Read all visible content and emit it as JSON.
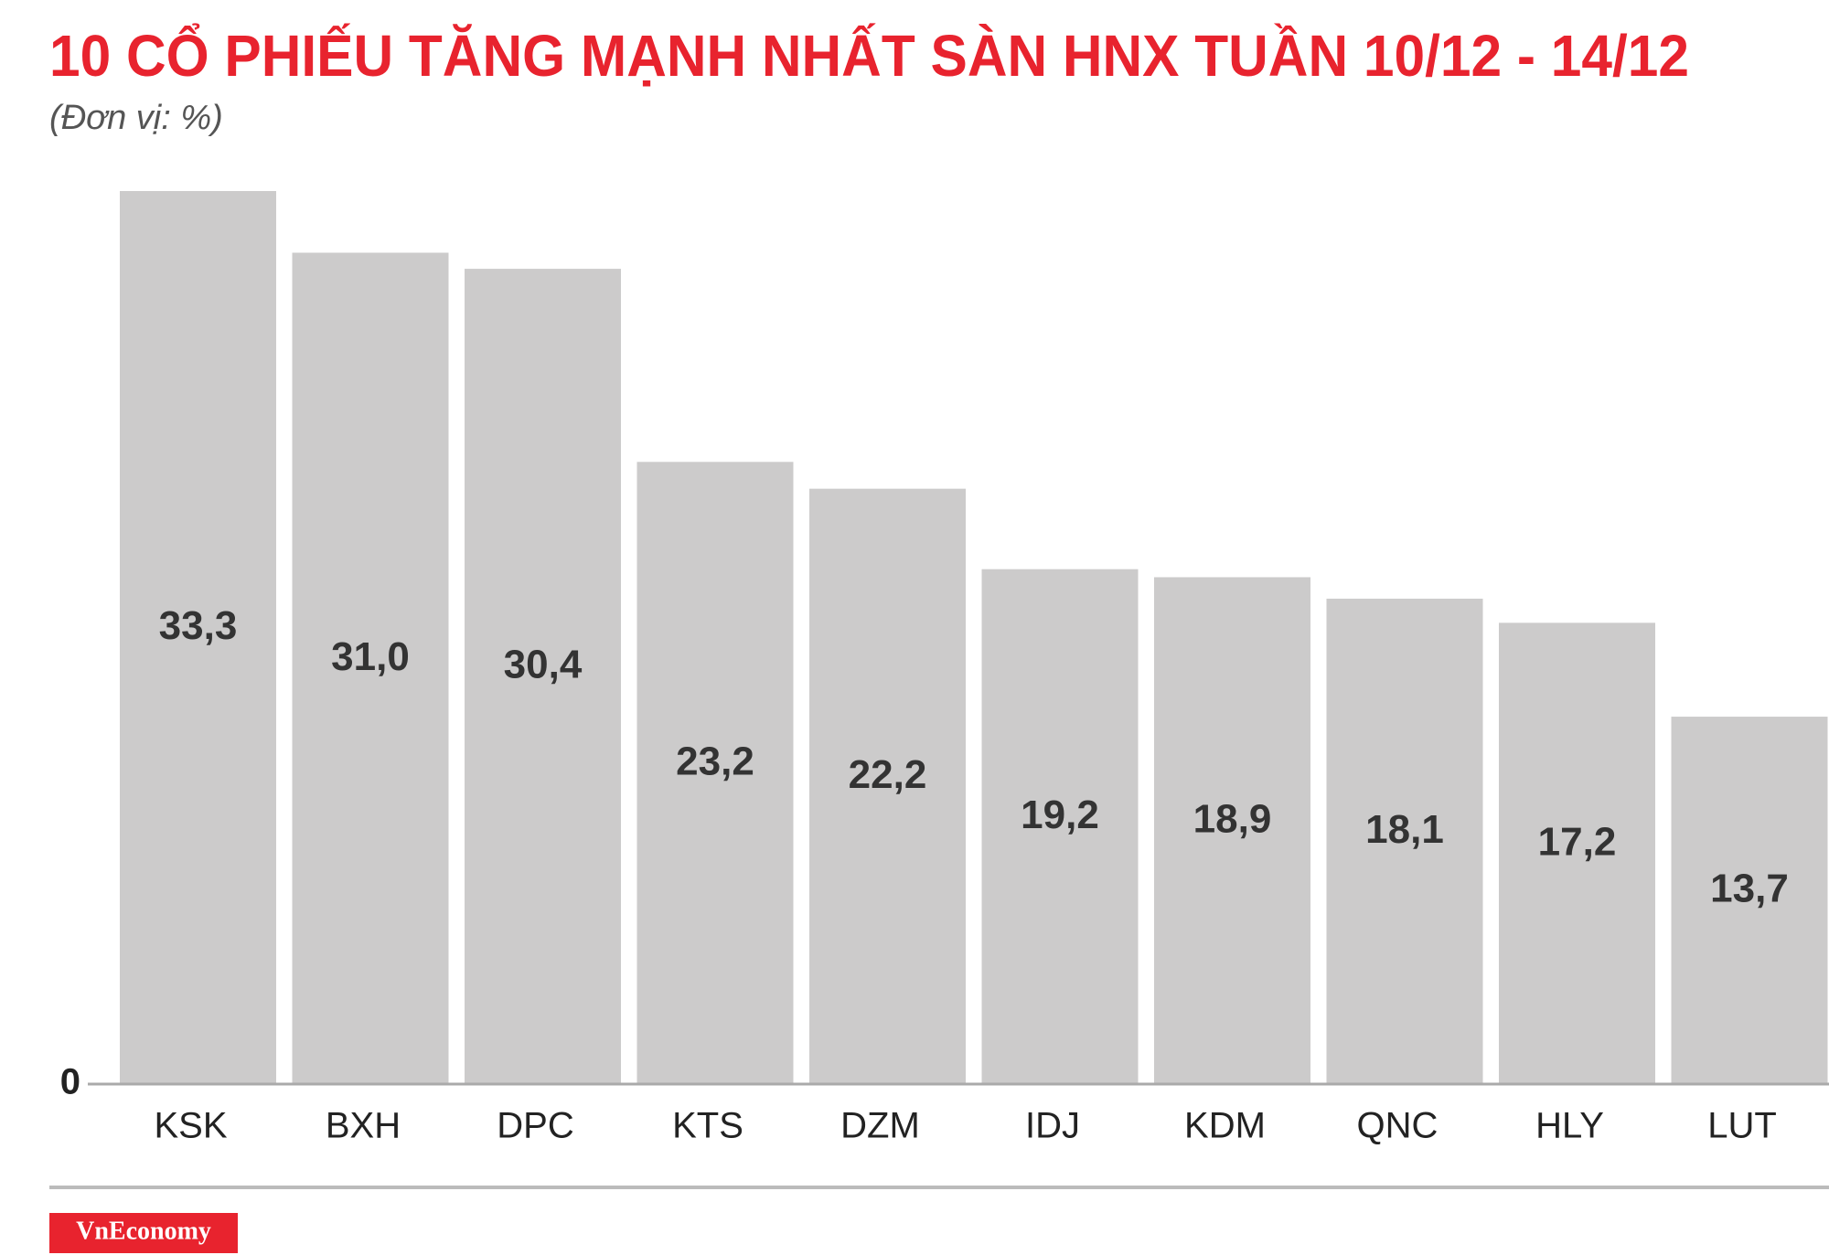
{
  "chart_data": {
    "type": "bar",
    "title": "10 CỔ PHIẾU TĂNG MẠNH NHẤT SÀN HNX TUẦN 10/12 - 14/12",
    "subtitle": "(Đơn vị: %)",
    "categories": [
      "KSK",
      "BXH",
      "DPC",
      "KTS",
      "DZM",
      "IDJ",
      "KDM",
      "QNC",
      "HLY",
      "LUT"
    ],
    "values": [
      33.3,
      31.0,
      30.4,
      23.2,
      22.2,
      19.2,
      18.9,
      18.1,
      17.2,
      13.7
    ],
    "value_labels": [
      "33,3",
      "31,0",
      "30,4",
      "23,2",
      "22,2",
      "19,2",
      "18,9",
      "18,1",
      "17,2",
      "13,7"
    ],
    "color": "#cccbcb",
    "ylim": [
      0,
      33.3
    ],
    "yticks": [
      0
    ],
    "grid": false,
    "logo": "VnEconomy"
  }
}
